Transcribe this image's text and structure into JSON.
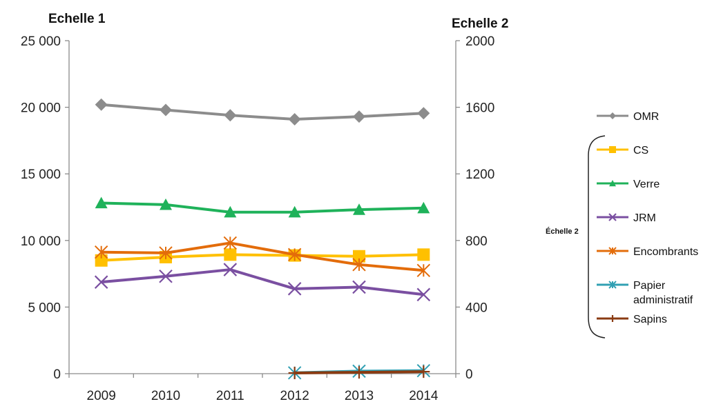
{
  "chart_data": {
    "type": "line",
    "categories": [
      "2009",
      "2010",
      "2011",
      "2012",
      "2013",
      "2014"
    ],
    "axes": {
      "left": {
        "title": "Echelle 1",
        "range": [
          0,
          25000
        ],
        "ticks": [
          {
            "value": 0,
            "label": "0"
          },
          {
            "value": 5000,
            "label": "5 000"
          },
          {
            "value": 10000,
            "label": "10 000"
          },
          {
            "value": 15000,
            "label": "15 000"
          },
          {
            "value": 20000,
            "label": "20 000"
          },
          {
            "value": 25000,
            "label": "25 000"
          }
        ]
      },
      "right": {
        "title": "Echelle 2",
        "range": [
          0,
          2000
        ],
        "ticks": [
          {
            "value": 0,
            "label": "0"
          },
          {
            "value": 400,
            "label": "400"
          },
          {
            "value": 800,
            "label": "800"
          },
          {
            "value": 1200,
            "label": "1200"
          },
          {
            "value": 1600,
            "label": "1600"
          },
          {
            "value": 2000,
            "label": "2000"
          }
        ]
      }
    },
    "grid": false,
    "legend_position": "right",
    "legend_bracket_label": "Échelle 2",
    "series": [
      {
        "name": "OMR",
        "axis": "left",
        "color": "#8c8c8c",
        "marker": "diamond",
        "values": [
          20200,
          19800,
          19400,
          19100,
          19300,
          19550
        ]
      },
      {
        "name": "CS",
        "axis": "right",
        "color": "#ffc000",
        "marker": "square",
        "values": [
          680,
          700,
          715,
          710,
          705,
          715
        ]
      },
      {
        "name": "Verre",
        "axis": "right",
        "color": "#1fb25a",
        "marker": "triangle",
        "values": [
          1025,
          1015,
          970,
          970,
          985,
          995
        ]
      },
      {
        "name": "JRM",
        "axis": "right",
        "color": "#7a4fa1",
        "marker": "x",
        "values": [
          550,
          585,
          625,
          510,
          520,
          475
        ]
      },
      {
        "name": "Encombrants",
        "axis": "right",
        "color": "#e36c0a",
        "marker": "asterisk",
        "values": [
          730,
          725,
          785,
          715,
          655,
          620
        ]
      },
      {
        "name": "Papier administratif",
        "axis": "right",
        "color": "#31a0b3",
        "marker": "asterisk",
        "values": [
          null,
          null,
          null,
          5,
          15,
          18
        ]
      },
      {
        "name": "Sapins",
        "axis": "right",
        "color": "#8a3b12",
        "marker": "plus",
        "values": [
          null,
          null,
          null,
          4,
          8,
          12
        ]
      }
    ]
  }
}
